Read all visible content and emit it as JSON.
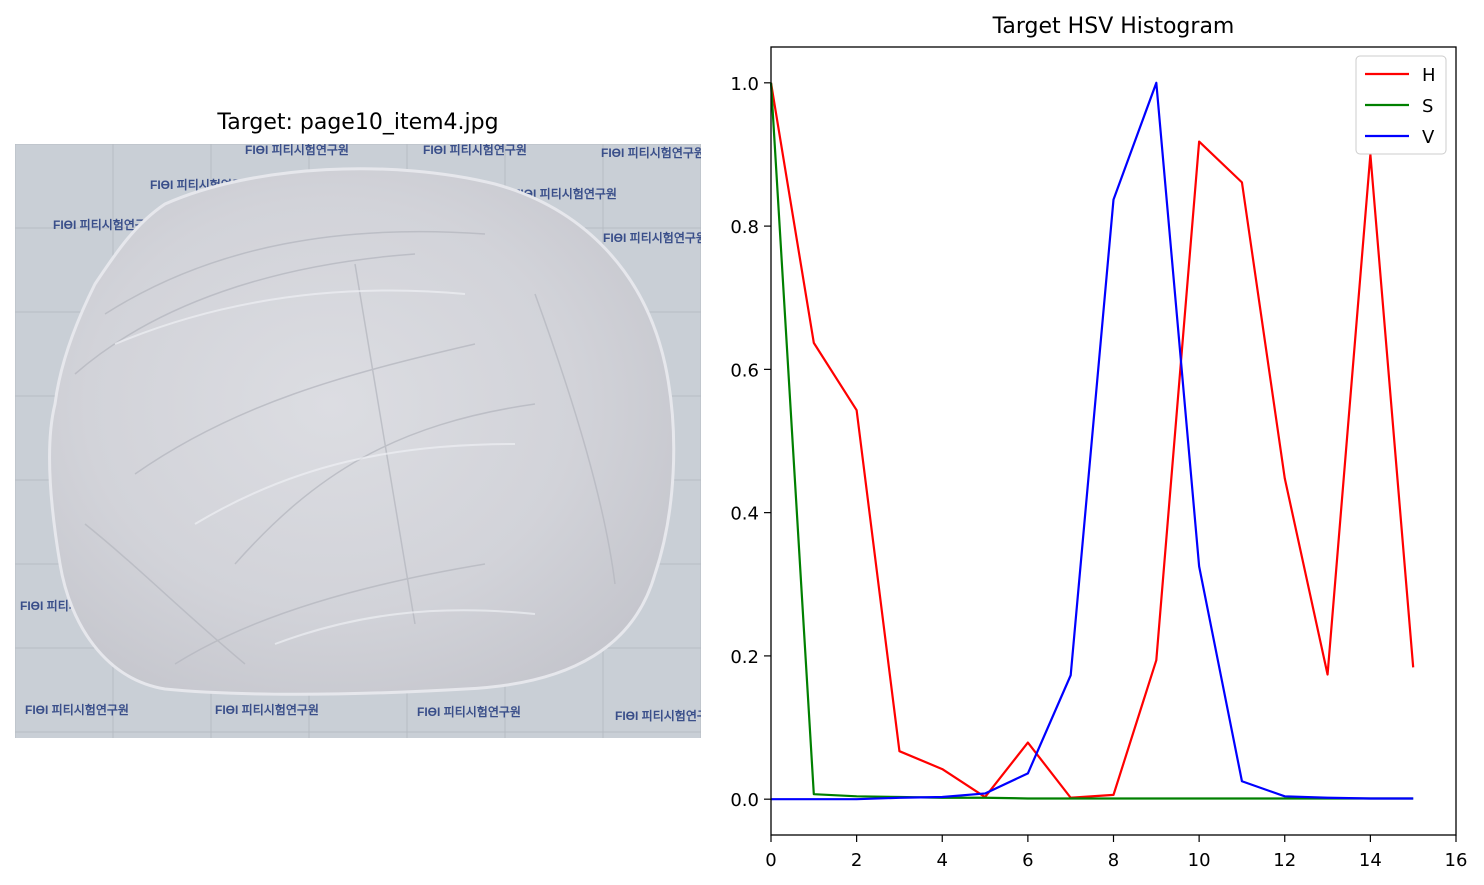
{
  "left_panel": {
    "title": "Target: page10_item4.jpg",
    "watermark_text": "FIϴI 피티시험연구원"
  },
  "chart_data": {
    "type": "line",
    "title": "Target HSV Histogram",
    "xlabel": "",
    "ylabel": "",
    "xlim": [
      0,
      16
    ],
    "ylim": [
      -0.05,
      1.05
    ],
    "xticks": [
      0,
      2,
      4,
      6,
      8,
      10,
      12,
      14,
      16
    ],
    "yticks": [
      0.0,
      0.2,
      0.4,
      0.6,
      0.8,
      1.0
    ],
    "ytick_labels": [
      "0.0",
      "0.2",
      "0.4",
      "0.6",
      "0.8",
      "1.0"
    ],
    "grid": false,
    "legend_position": "top-right",
    "x": [
      0,
      1,
      2,
      3,
      4,
      5,
      6,
      7,
      8,
      9,
      10,
      11,
      12,
      13,
      14,
      15
    ],
    "series": [
      {
        "name": "H",
        "color": "#ff0000",
        "values": [
          1.0,
          0.637,
          0.543,
          0.067,
          0.042,
          0.003,
          0.079,
          0.002,
          0.006,
          0.194,
          0.918,
          0.861,
          0.448,
          0.174,
          0.9,
          0.184
        ]
      },
      {
        "name": "S",
        "color": "#008000",
        "values": [
          1.0,
          0.007,
          0.004,
          0.003,
          0.002,
          0.002,
          0.001,
          0.001,
          0.001,
          0.001,
          0.001,
          0.001,
          0.001,
          0.001,
          0.001,
          0.001
        ]
      },
      {
        "name": "V",
        "color": "#0000ff",
        "values": [
          0.0,
          0.0,
          0.0,
          0.002,
          0.003,
          0.008,
          0.036,
          0.173,
          0.837,
          1.0,
          0.325,
          0.025,
          0.004,
          0.002,
          0.001,
          0.001
        ]
      }
    ]
  }
}
